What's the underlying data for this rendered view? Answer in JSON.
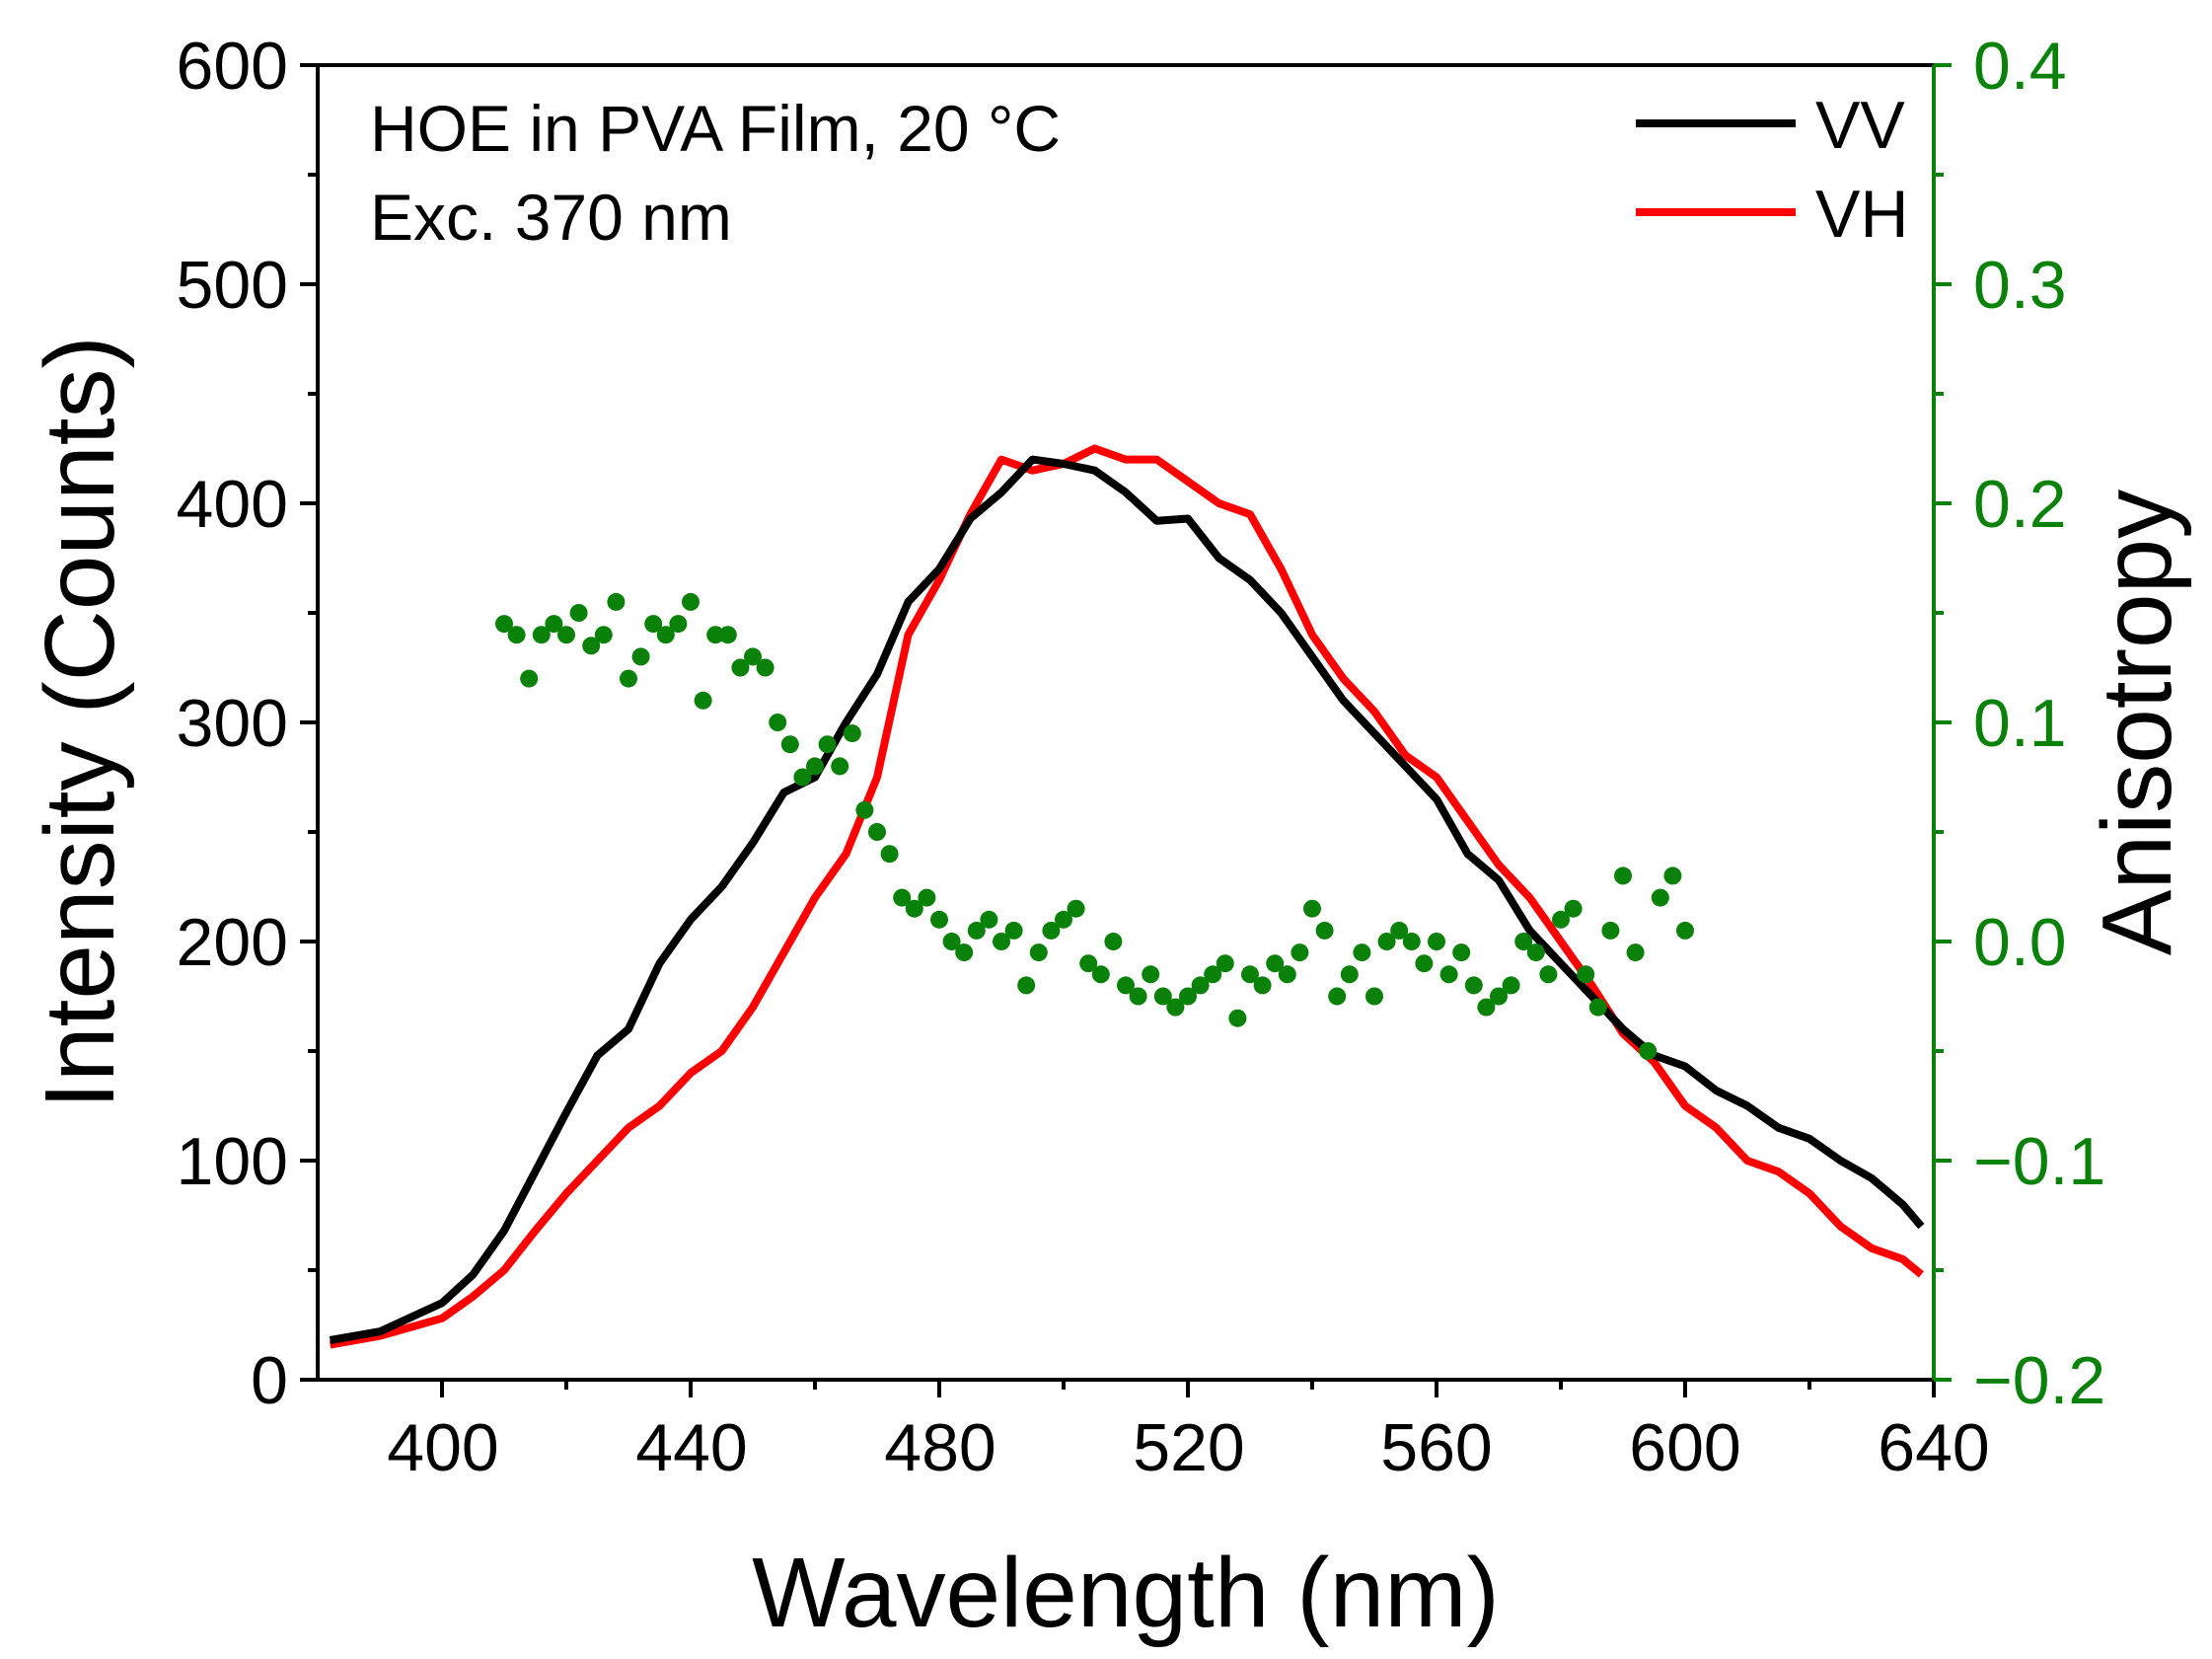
{
  "chart_data": {
    "type": "line",
    "annotations": [
      "HOE in PVA Film, 20 °C",
      "Exc. 370 nm"
    ],
    "xlabel": "Wavelength (nm)",
    "ylabel": "Intensity (Counts)",
    "y2label": "Anisotropy",
    "xlim": [
      380,
      640
    ],
    "ylim": [
      0,
      600
    ],
    "y2lim": [
      -0.2,
      0.4
    ],
    "x_ticks": [
      "400",
      "440",
      "480",
      "520",
      "560",
      "600",
      "640"
    ],
    "y_ticks": [
      "0",
      "100",
      "200",
      "300",
      "400",
      "500",
      "600"
    ],
    "y2_ticks": [
      "−0.2",
      "−0.1",
      "0.0",
      "0.1",
      "0.2",
      "0.3",
      "0.4"
    ],
    "grid": false,
    "legend_position": "top-right",
    "colors": {
      "VV": "#000000",
      "VH": "#ff0000",
      "anisotropy": "#0a820a",
      "right_axis": "#0a820a"
    },
    "series": [
      {
        "name": "VV",
        "axis": "left",
        "x": [
          382,
          390,
          400,
          405,
          410,
          415,
          420,
          425,
          430,
          435,
          440,
          445,
          450,
          455,
          460,
          465,
          470,
          475,
          480,
          485,
          490,
          495,
          500,
          505,
          510,
          515,
          520,
          525,
          530,
          535,
          540,
          545,
          550,
          555,
          560,
          565,
          570,
          575,
          580,
          585,
          590,
          595,
          600,
          605,
          610,
          615,
          620,
          625,
          630,
          635,
          638
        ],
        "values": [
          18,
          22,
          35,
          48,
          68,
          95,
          122,
          148,
          160,
          190,
          210,
          225,
          245,
          268,
          275,
          300,
          322,
          355,
          370,
          393,
          405,
          420,
          418,
          415,
          405,
          392,
          393,
          375,
          365,
          350,
          330,
          310,
          295,
          280,
          265,
          240,
          228,
          205,
          190,
          175,
          160,
          148,
          143,
          132,
          125,
          115,
          110,
          100,
          92,
          80,
          70
        ]
      },
      {
        "name": "VH",
        "axis": "left",
        "x": [
          382,
          390,
          400,
          405,
          410,
          415,
          420,
          425,
          430,
          435,
          440,
          445,
          450,
          455,
          460,
          465,
          470,
          475,
          480,
          485,
          490,
          495,
          500,
          505,
          510,
          515,
          520,
          525,
          530,
          535,
          540,
          545,
          550,
          555,
          560,
          565,
          570,
          575,
          580,
          585,
          590,
          595,
          600,
          605,
          610,
          615,
          620,
          625,
          630,
          635,
          638
        ],
        "values": [
          16,
          20,
          28,
          38,
          50,
          68,
          85,
          100,
          115,
          125,
          140,
          150,
          170,
          195,
          220,
          240,
          275,
          340,
          365,
          395,
          420,
          415,
          418,
          425,
          420,
          420,
          410,
          400,
          395,
          370,
          340,
          320,
          305,
          285,
          275,
          255,
          235,
          220,
          200,
          180,
          158,
          145,
          125,
          115,
          100,
          95,
          85,
          70,
          60,
          55,
          48
        ]
      },
      {
        "name": "Anisotropy",
        "axis": "right",
        "marker": "dot",
        "x": [
          410,
          412,
          414,
          416,
          418,
          420,
          422,
          424,
          426,
          428,
          430,
          432,
          434,
          436,
          438,
          440,
          442,
          444,
          446,
          448,
          450,
          452,
          454,
          456,
          458,
          460,
          462,
          464,
          466,
          468,
          470,
          472,
          474,
          476,
          478,
          480,
          482,
          484,
          486,
          488,
          490,
          492,
          494,
          496,
          498,
          500,
          502,
          504,
          506,
          508,
          510,
          512,
          514,
          516,
          518,
          520,
          522,
          524,
          526,
          528,
          530,
          532,
          534,
          536,
          538,
          540,
          542,
          544,
          546,
          548,
          550,
          552,
          554,
          556,
          558,
          560,
          562,
          564,
          566,
          568,
          570,
          572,
          574,
          576,
          578,
          580,
          582,
          584,
          586,
          588,
          590,
          592,
          594,
          596,
          598,
          600
        ],
        "values": [
          0.145,
          0.14,
          0.12,
          0.14,
          0.145,
          0.14,
          0.15,
          0.135,
          0.14,
          0.155,
          0.12,
          0.13,
          0.145,
          0.14,
          0.145,
          0.155,
          0.11,
          0.14,
          0.14,
          0.125,
          0.13,
          0.125,
          0.1,
          0.09,
          0.075,
          0.08,
          0.09,
          0.08,
          0.095,
          0.06,
          0.05,
          0.04,
          0.02,
          0.015,
          0.02,
          0.01,
          0.0,
          -0.005,
          0.005,
          0.01,
          0.0,
          0.005,
          -0.02,
          -0.005,
          0.005,
          0.01,
          0.015,
          -0.01,
          -0.015,
          0.0,
          -0.02,
          -0.025,
          -0.015,
          -0.025,
          -0.03,
          -0.025,
          -0.02,
          -0.015,
          -0.01,
          -0.035,
          -0.015,
          -0.02,
          -0.01,
          -0.015,
          -0.005,
          0.015,
          0.005,
          -0.025,
          -0.015,
          -0.005,
          -0.025,
          0.0,
          0.005,
          0.0,
          -0.01,
          0.0,
          -0.015,
          -0.005,
          -0.02,
          -0.03,
          -0.025,
          -0.02,
          0.0,
          -0.005,
          -0.015,
          0.01,
          0.015,
          -0.015,
          -0.03,
          0.005,
          0.03,
          -0.005,
          -0.05,
          0.02,
          0.03,
          0.005
        ]
      }
    ]
  }
}
